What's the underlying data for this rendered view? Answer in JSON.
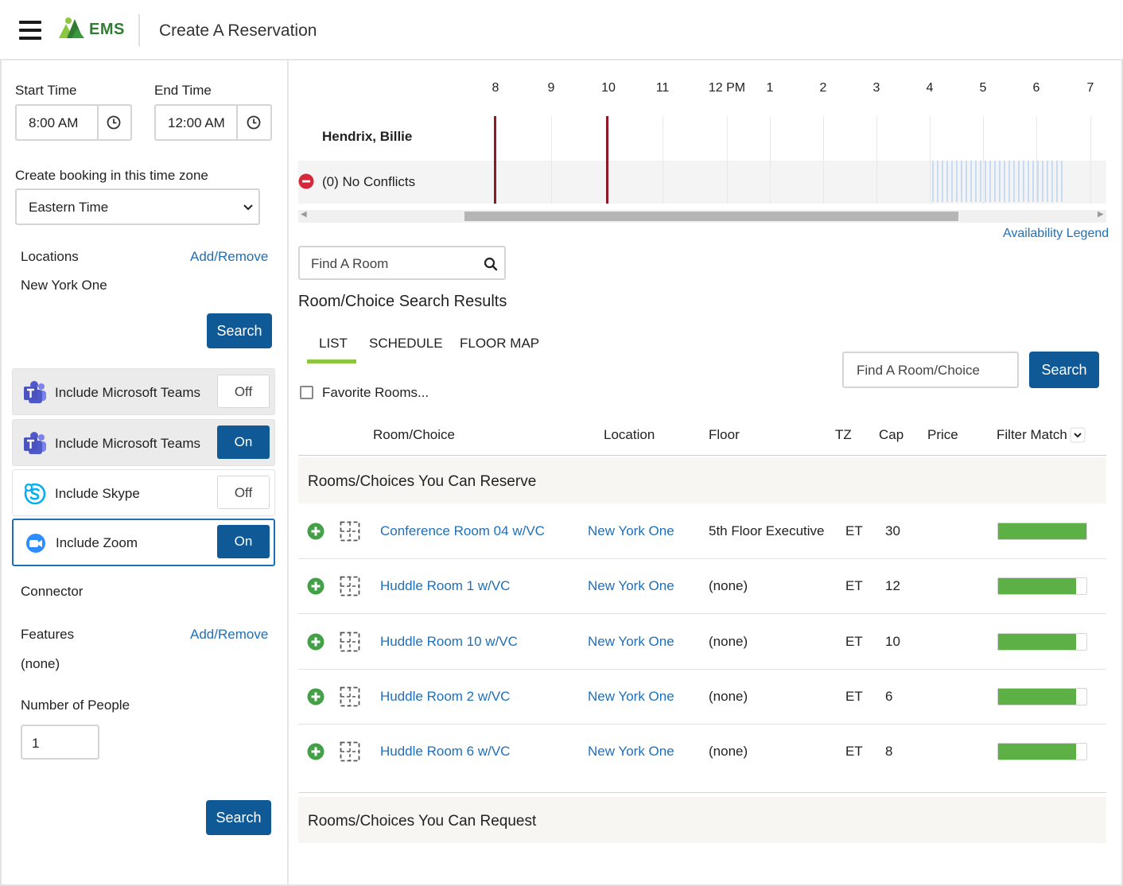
{
  "app": {
    "brand": "EMS",
    "page_title": "Create A Reservation",
    "icons": {
      "menu": "hamburger-icon",
      "logo": "ems-logo"
    },
    "colors": {
      "brand_green": "#2f7d32",
      "primary_blue": "#0f5a96",
      "link_blue": "#1f6fb8",
      "conflict_red": "#8b1a2b",
      "match_green": "#5cb045"
    }
  },
  "sidebar": {
    "start_time_label": "Start Time",
    "start_time_value": "8:00 AM",
    "end_time_label": "End Time",
    "end_time_value": "12:00 AM",
    "timezone_label": "Create booking in this time zone",
    "timezone_value": "Eastern Time",
    "locations_label": "Locations",
    "locations_link": "Add/Remove",
    "locations_value": "New York One",
    "search_label": "Search",
    "toggles": [
      {
        "label": "Include Microsoft Teams",
        "state": "Off",
        "icon": "microsoft-teams-icon"
      },
      {
        "label": "Include Microsoft Teams",
        "state": "On",
        "icon": "microsoft-teams-icon"
      },
      {
        "label": "Include Skype",
        "state": "Off",
        "icon": "skype-icon"
      },
      {
        "label": "Include Zoom",
        "state": "On",
        "icon": "zoom-icon"
      }
    ],
    "connector_label": "Connector",
    "features_label": "Features",
    "features_link": "Add/Remove",
    "features_value": "(none)",
    "people_label": "Number of People",
    "people_value": "1",
    "bottom_search_label": "Search"
  },
  "timeline": {
    "hours": [
      "8",
      "9",
      "10",
      "11",
      "12 PM",
      "1",
      "2",
      "3",
      "4",
      "5",
      "6",
      "7"
    ],
    "attendee": "Hendrix, Billie",
    "conflicts": "(0) No Conflicts",
    "legend_link": "Availability Legend"
  },
  "results": {
    "find_room_placeholder": "Find A Room",
    "heading": "Room/Choice Search Results",
    "tabs": [
      "LIST",
      "SCHEDULE",
      "FLOOR MAP"
    ],
    "active_tab": "LIST",
    "find_choice_placeholder": "Find A Room/Choice",
    "search_label": "Search",
    "favorite_label": "Favorite Rooms...",
    "columns": {
      "room": "Room/Choice",
      "location": "Location",
      "floor": "Floor",
      "tz": "TZ",
      "cap": "Cap",
      "price": "Price",
      "filter": "Filter Match"
    },
    "reserve_section": "Rooms/Choices You Can Reserve",
    "request_section": "Rooms/Choices You Can Request",
    "rows": [
      {
        "room": "Conference Room 04 w/VC",
        "location": "New York One",
        "floor": "5th Floor Executive",
        "tz": "ET",
        "cap": "30",
        "price": "",
        "match": 1.0
      },
      {
        "room": "Huddle Room 1 w/VC",
        "location": "New York One",
        "floor": "(none)",
        "tz": "ET",
        "cap": "12",
        "price": "",
        "match": 0.88
      },
      {
        "room": "Huddle Room 10 w/VC",
        "location": "New York One",
        "floor": "(none)",
        "tz": "ET",
        "cap": "10",
        "price": "",
        "match": 0.88
      },
      {
        "room": "Huddle Room 2 w/VC",
        "location": "New York One",
        "floor": "(none)",
        "tz": "ET",
        "cap": "6",
        "price": "",
        "match": 0.88
      },
      {
        "room": "Huddle Room 6 w/VC",
        "location": "New York One",
        "floor": "(none)",
        "tz": "ET",
        "cap": "8",
        "price": "",
        "match": 0.88
      }
    ]
  }
}
